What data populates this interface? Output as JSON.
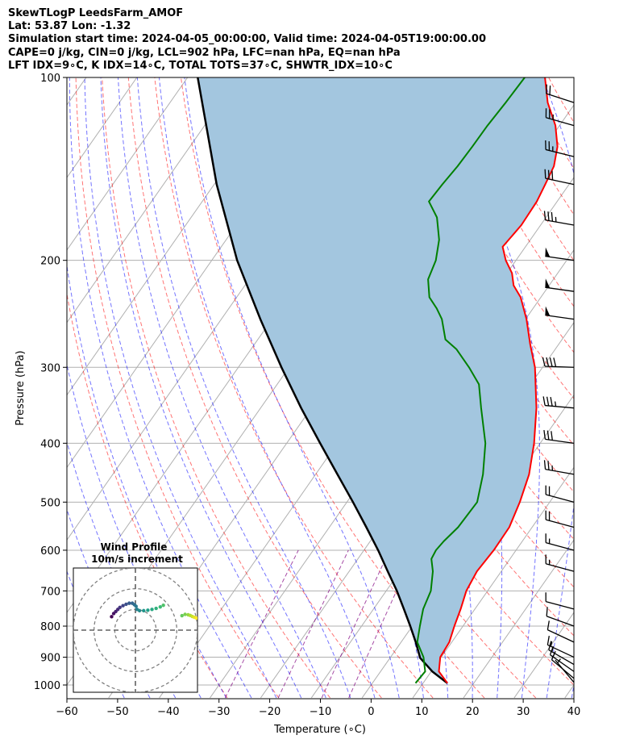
{
  "header": {
    "line1": "SkewTLogP LeedsFarm_AMOF",
    "line2": "Lat: 53.87   Lon: -1.32",
    "line3": "Simulation start time: 2024-04-05_00:00:00, Valid time: 2024-04-05T19:00:00.00",
    "line4": "CAPE=0 j/kg, CIN=0 j/kg, LCL=902 hPa, LFC=nan hPa, EQ=nan hPa",
    "line5": "LFT IDX=9∘C, K IDX=14∘C, TOTAL TOTS=37∘C, SHWTR_IDX=10∘C"
  },
  "chart_data": [
    {
      "type": "line",
      "subtype": "skew-t log-p",
      "xlabel": "Temperature (∘C)",
      "ylabel": "Pressure (hPa)",
      "xlim": [
        -60,
        40
      ],
      "ylim": [
        1050,
        100
      ],
      "y_scale": "log",
      "x_ticks": [
        -60,
        -50,
        -40,
        -30,
        -20,
        -10,
        0,
        10,
        20,
        30,
        40
      ],
      "x_tick_labels": [
        "−60",
        "−50",
        "−40",
        "−30",
        "−20",
        "−10",
        "0",
        "10",
        "20",
        "30",
        "40"
      ],
      "y_ticks": [
        1000,
        900,
        800,
        700,
        600,
        500,
        400,
        300,
        200,
        100
      ],
      "y_tick_labels": [
        "1000",
        "900",
        "800",
        "700",
        "600",
        "500",
        "400",
        "300",
        "200",
        "100"
      ],
      "grid": true,
      "colors": {
        "temperature": "#ff0000",
        "dewpoint": "#008000",
        "parcel": "#000000",
        "shade": "#a3c6df"
      },
      "series": [
        {
          "key": "temperature",
          "values": [
            [
              993,
              14.8
            ],
            [
              950,
              11.5
            ],
            [
              900,
              9.8
            ],
            [
              850,
              9.5
            ],
            [
              800,
              8.3
            ],
            [
              750,
              7.2
            ],
            [
              700,
              5.8
            ],
            [
              650,
              5.2
            ],
            [
              600,
              5.6
            ],
            [
              550,
              5.5
            ],
            [
              500,
              4.1
            ],
            [
              450,
              2.1
            ],
            [
              400,
              -1.2
            ],
            [
              350,
              -5.6
            ],
            [
              300,
              -11.5
            ],
            [
              275,
              -15.6
            ],
            [
              250,
              -19.8
            ],
            [
              230,
              -24
            ],
            [
              220,
              -27
            ],
            [
              210,
              -29
            ],
            [
              200,
              -32
            ],
            [
              190,
              -34.5
            ],
            [
              175,
              -33.8
            ],
            [
              160,
              -34
            ],
            [
              150,
              -34.7
            ],
            [
              140,
              -35.5
            ],
            [
              130,
              -37.5
            ],
            [
              120,
              -40.8
            ],
            [
              110,
              -45.5
            ],
            [
              100,
              -49.5
            ]
          ]
        },
        {
          "key": "dewpoint",
          "values": [
            [
              993,
              8.5
            ],
            [
              950,
              8.8
            ],
            [
              900,
              6.5
            ],
            [
              850,
              3.2
            ],
            [
              800,
              1.5
            ],
            [
              750,
              -0.2
            ],
            [
              700,
              -1.2
            ],
            [
              650,
              -3.5
            ],
            [
              620,
              -5.5
            ],
            [
              600,
              -5.8
            ],
            [
              580,
              -5.5
            ],
            [
              550,
              -4.6
            ],
            [
              500,
              -4.3
            ],
            [
              450,
              -7
            ],
            [
              400,
              -10.8
            ],
            [
              350,
              -16.5
            ],
            [
              320,
              -20.2
            ],
            [
              300,
              -24.5
            ],
            [
              280,
              -29.5
            ],
            [
              270,
              -33
            ],
            [
              250,
              -36.5
            ],
            [
              240,
              -39
            ],
            [
              230,
              -42
            ],
            [
              215,
              -44.7
            ],
            [
              200,
              -45.8
            ],
            [
              185,
              -48
            ],
            [
              170,
              -51.5
            ],
            [
              160,
              -55.3
            ],
            [
              150,
              -55
            ],
            [
              140,
              -54.5
            ],
            [
              130,
              -54.3
            ],
            [
              120,
              -54.2
            ],
            [
              110,
              -53.8
            ],
            [
              100,
              -53.5
            ]
          ]
        },
        {
          "key": "parcel",
          "values": [
            [
              993,
              14.8
            ],
            [
              950,
              10.2
            ],
            [
              902,
              5.9
            ],
            [
              900,
              5.8
            ],
            [
              850,
              2.9
            ],
            [
              800,
              -0.4
            ],
            [
              750,
              -4
            ],
            [
              700,
              -7.9
            ],
            [
              650,
              -12.4
            ],
            [
              600,
              -17.2
            ],
            [
              550,
              -22.7
            ],
            [
              500,
              -28.8
            ],
            [
              450,
              -35.7
            ],
            [
              400,
              -43.4
            ],
            [
              350,
              -52
            ],
            [
              300,
              -61.5
            ],
            [
              250,
              -72.3
            ],
            [
              200,
              -85
            ],
            [
              150,
              -99.5
            ],
            [
              100,
              -118
            ]
          ]
        }
      ],
      "wind_barbs": [
        {
          "p": 990,
          "speed_kt": 5,
          "dir_deg": 220
        },
        {
          "p": 975,
          "speed_kt": 10,
          "dir_deg": 230
        },
        {
          "p": 950,
          "speed_kt": 15,
          "dir_deg": 235
        },
        {
          "p": 925,
          "speed_kt": 15,
          "dir_deg": 240
        },
        {
          "p": 900,
          "speed_kt": 15,
          "dir_deg": 245
        },
        {
          "p": 850,
          "speed_kt": 10,
          "dir_deg": 245
        },
        {
          "p": 800,
          "speed_kt": 10,
          "dir_deg": 250
        },
        {
          "p": 750,
          "speed_kt": 10,
          "dir_deg": 255
        },
        {
          "p": 650,
          "speed_kt": 15,
          "dir_deg": 255
        },
        {
          "p": 600,
          "speed_kt": 15,
          "dir_deg": 255
        },
        {
          "p": 550,
          "speed_kt": 20,
          "dir_deg": 255
        },
        {
          "p": 500,
          "speed_kt": 20,
          "dir_deg": 255
        },
        {
          "p": 450,
          "speed_kt": 25,
          "dir_deg": 260
        },
        {
          "p": 400,
          "speed_kt": 30,
          "dir_deg": 262
        },
        {
          "p": 350,
          "speed_kt": 35,
          "dir_deg": 265
        },
        {
          "p": 300,
          "speed_kt": 40,
          "dir_deg": 268
        },
        {
          "p": 250,
          "speed_kt": 50,
          "dir_deg": 262
        },
        {
          "p": 225,
          "speed_kt": 50,
          "dir_deg": 262
        },
        {
          "p": 200,
          "speed_kt": 50,
          "dir_deg": 262
        },
        {
          "p": 175,
          "speed_kt": 35,
          "dir_deg": 260
        },
        {
          "p": 150,
          "speed_kt": 30,
          "dir_deg": 258
        },
        {
          "p": 135,
          "speed_kt": 25,
          "dir_deg": 256
        },
        {
          "p": 120,
          "speed_kt": 25,
          "dir_deg": 254
        },
        {
          "p": 110,
          "speed_kt": 20,
          "dir_deg": 252
        }
      ]
    },
    {
      "type": "scatter",
      "subtype": "hodograph",
      "title": "Wind Profile",
      "subtitle": "10m/s increment",
      "rings_ms": [
        10,
        20,
        30
      ],
      "range": [
        -30,
        30
      ],
      "colormap": "viridis",
      "points_ms": [
        [
          -11.5,
          6.5
        ],
        [
          -10.5,
          8
        ],
        [
          -9.5,
          9
        ],
        [
          -8.5,
          10
        ],
        [
          -7.5,
          11
        ],
        [
          -6,
          11.8
        ],
        [
          -4.5,
          12.5
        ],
        [
          -3,
          13
        ],
        [
          -1.5,
          13
        ],
        [
          -0.5,
          12.3
        ],
        [
          0.3,
          11.5
        ],
        [
          0.8,
          10
        ],
        [
          2,
          9.4
        ],
        [
          4,
          9.4
        ],
        [
          6,
          9.6
        ],
        [
          8,
          10
        ],
        [
          10,
          10.5
        ],
        [
          12,
          11.2
        ],
        [
          13.5,
          12
        ],
        [
          22.5,
          7
        ],
        [
          24,
          7.6
        ],
        [
          25.5,
          7.4
        ],
        [
          26.5,
          7.1
        ],
        [
          27.5,
          6.6
        ],
        [
          28.5,
          6.2
        ],
        [
          29.5,
          5.8
        ]
      ]
    }
  ]
}
